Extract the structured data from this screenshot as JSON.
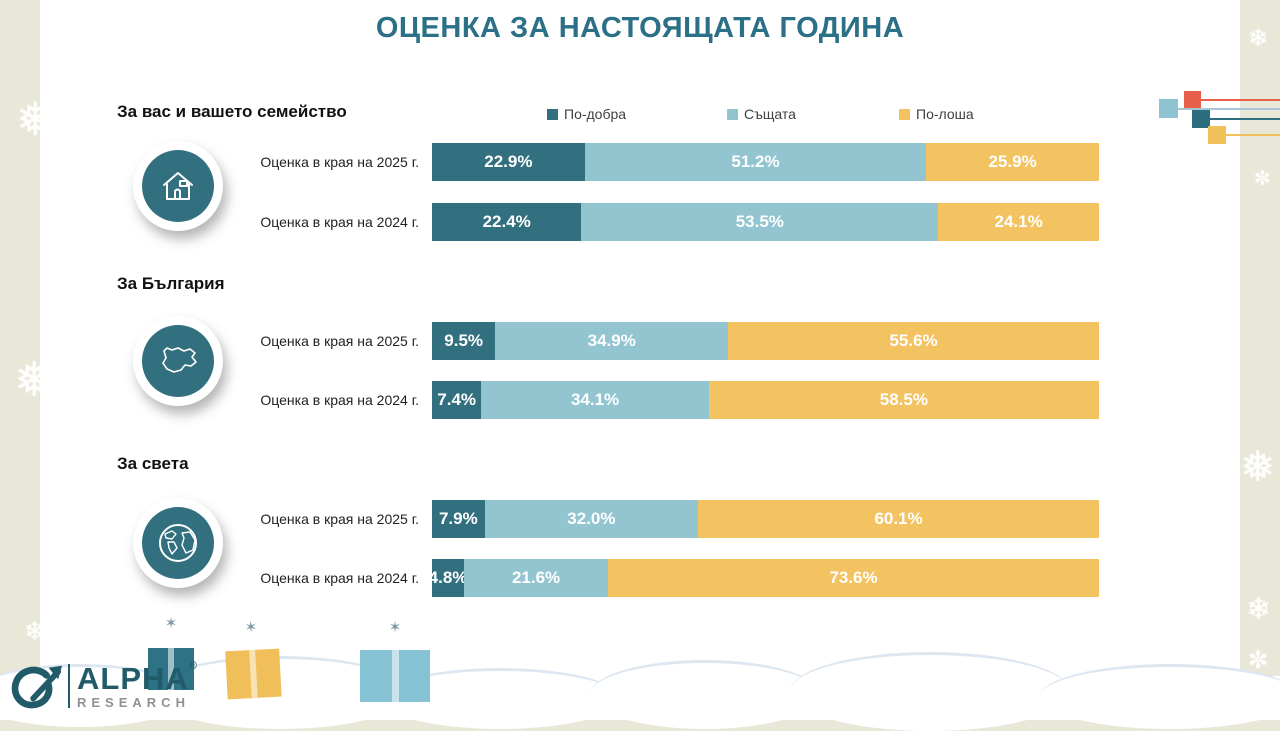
{
  "title": "ОЦЕНКА ЗА НАСТОЯЩАТА ГОДИНА",
  "colors": {
    "better": "#33707f",
    "same": "#93c5d1",
    "worse": "#f3c261",
    "title": "#2b7086",
    "background": "#e9e7d8"
  },
  "legend": [
    {
      "label": "По-добра",
      "color": "#33707f"
    },
    {
      "label": "Същата",
      "color": "#93c5d1"
    },
    {
      "label": "По-лоша",
      "color": "#f3c261"
    }
  ],
  "logo": {
    "brand": "ALPHA",
    "registered": "®",
    "subtitle": "RESEARCH"
  },
  "chart_data": {
    "type": "bar",
    "orientation": "horizontal-stacked",
    "title": "ОЦЕНКА ЗА НАСТОЯЩАТА ГОДИНА",
    "series": [
      "По-добра",
      "Същата",
      "По-лоша"
    ],
    "series_colors": [
      "#33707f",
      "#93c5d1",
      "#f3c261"
    ],
    "xlim": [
      0,
      100
    ],
    "legend_position": "top",
    "groups": [
      {
        "group": "За вас и вашето семейство",
        "icon": "house-icon",
        "rows": [
          {
            "label": "Оценка в края на 2025 г.",
            "values": [
              22.9,
              51.2,
              25.9
            ],
            "display": [
              "22.9%",
              "51.2%",
              "25.9%"
            ]
          },
          {
            "label": "Оценка в края на 2024 г.",
            "values": [
              22.4,
              53.5,
              24.1
            ],
            "display": [
              "22.4%",
              "53.5%",
              "24.1%"
            ]
          }
        ]
      },
      {
        "group": "За България",
        "icon": "bulgaria-map-icon",
        "rows": [
          {
            "label": "Оценка в края на 2025 г.",
            "values": [
              9.5,
              34.9,
              55.6
            ],
            "display": [
              "9.5%",
              "34.9%",
              "55.6%"
            ]
          },
          {
            "label": "Оценка в края на 2024 г.",
            "values": [
              7.4,
              34.1,
              58.5
            ],
            "display": [
              "7.4%",
              "34.1%",
              "58.5%"
            ]
          }
        ]
      },
      {
        "group": "За света",
        "icon": "globe-icon",
        "rows": [
          {
            "label": "Оценка в края на 2025 г.",
            "values": [
              7.9,
              32.0,
              60.1
            ],
            "display": [
              "7.9%",
              "32.0%",
              "60.1%"
            ]
          },
          {
            "label": "Оценка в края на 2024 г.",
            "values": [
              4.8,
              21.6,
              73.6
            ],
            "display": [
              "4.8%",
              "21.6%",
              "73.6%"
            ]
          }
        ]
      }
    ]
  }
}
